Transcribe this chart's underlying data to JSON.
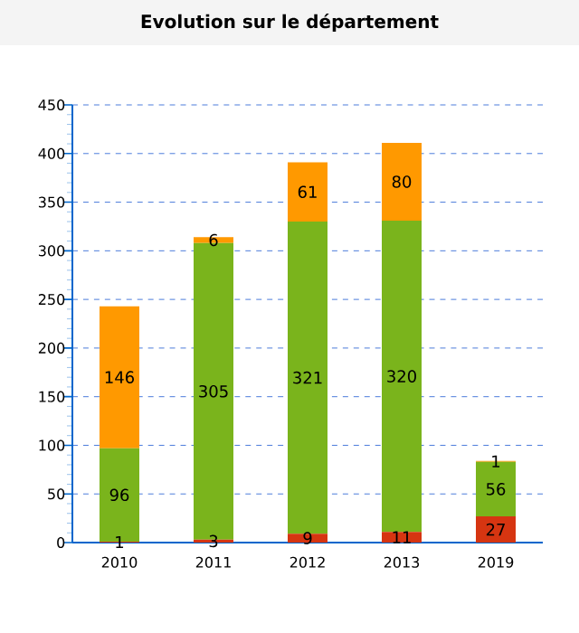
{
  "chart_data": {
    "type": "bar",
    "title": "Evolution sur le département",
    "stacked": true,
    "categories": [
      "2010",
      "2011",
      "2012",
      "2013",
      "2019"
    ],
    "series": [
      {
        "color": "#d63511",
        "values": [
          1,
          3,
          9,
          11,
          27
        ]
      },
      {
        "color": "#7ab41c",
        "values": [
          96,
          305,
          321,
          320,
          56
        ]
      },
      {
        "color": "#ff9900",
        "values": [
          146,
          6,
          61,
          80,
          1
        ]
      }
    ],
    "ylim": [
      0,
      450
    ],
    "yticks": [
      0,
      50,
      100,
      150,
      200,
      250,
      300,
      350,
      400,
      450
    ],
    "grid": "y",
    "data_labels": true
  }
}
